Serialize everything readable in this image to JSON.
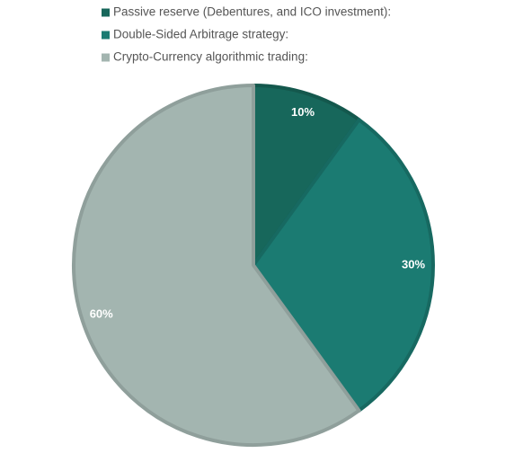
{
  "chart_data": {
    "type": "pie",
    "categories": [
      "Passive reserve (Debentures, and ICO investment):",
      "Double-Sided Arbitrage strategy:",
      "Crypto-Currency algorithmic trading:"
    ],
    "values": [
      10,
      30,
      60
    ],
    "value_labels": [
      "10%",
      "30%",
      "60%"
    ],
    "colors": [
      "#17675b",
      "#1b7b72",
      "#a3b5b0"
    ],
    "start": "top",
    "direction": "clockwise"
  }
}
